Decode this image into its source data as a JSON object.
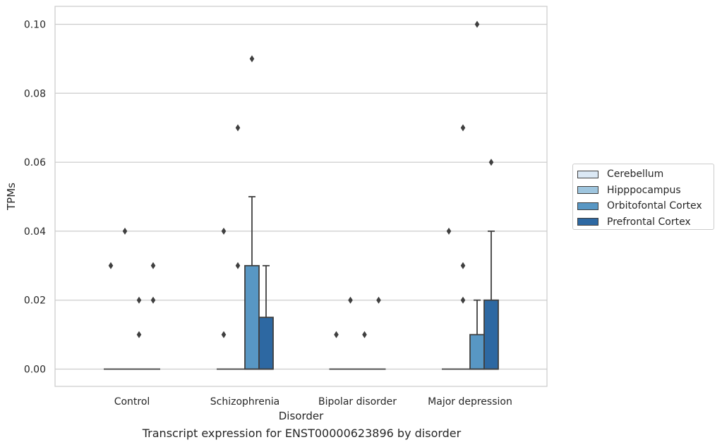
{
  "chart_data": {
    "type": "box",
    "title": "",
    "caption": "Transcript expression for ENST00000623896 by disorder",
    "xlabel": "Disorder",
    "ylabel": "TPMs",
    "ylim": [
      -0.005,
      0.105
    ],
    "yticks": [
      0.0,
      0.02,
      0.04,
      0.06,
      0.08,
      0.1
    ],
    "ytick_labels": [
      "0.00",
      "0.02",
      "0.04",
      "0.06",
      "0.08",
      "0.10"
    ],
    "grid": true,
    "legend_position": "right",
    "categories": [
      "Control",
      "Schizophrenia",
      "Bipolar disorder",
      "Major depression"
    ],
    "series": [
      {
        "name": "Cerebellum",
        "color": "#dbe8f4",
        "boxes": [
          {
            "q1": 0,
            "median": 0,
            "q3": 0,
            "whisker_low": 0,
            "whisker_high": 0,
            "outliers": [
              0.03
            ]
          },
          {
            "q1": 0,
            "median": 0,
            "q3": 0,
            "whisker_low": 0,
            "whisker_high": 0,
            "outliers": [
              0.01,
              0.04
            ]
          },
          {
            "q1": 0,
            "median": 0,
            "q3": 0,
            "whisker_low": 0,
            "whisker_high": 0,
            "outliers": [
              0.01
            ]
          },
          {
            "q1": 0,
            "median": 0,
            "q3": 0,
            "whisker_low": 0,
            "whisker_high": 0,
            "outliers": [
              0.04
            ]
          }
        ]
      },
      {
        "name": "Hipppocampus",
        "color": "#9ec5de",
        "boxes": [
          {
            "q1": 0,
            "median": 0,
            "q3": 0,
            "whisker_low": 0,
            "whisker_high": 0,
            "outliers": [
              0.04
            ]
          },
          {
            "q1": 0,
            "median": 0,
            "q3": 0,
            "whisker_low": 0,
            "whisker_high": 0,
            "outliers": [
              0.03,
              0.07
            ]
          },
          {
            "q1": 0,
            "median": 0,
            "q3": 0,
            "whisker_low": 0,
            "whisker_high": 0,
            "outliers": [
              0.02
            ]
          },
          {
            "q1": 0,
            "median": 0,
            "q3": 0,
            "whisker_low": 0,
            "whisker_high": 0,
            "outliers": [
              0.02,
              0.03,
              0.07
            ]
          }
        ]
      },
      {
        "name": "Orbitofontal Cortex",
        "color": "#5897c4",
        "boxes": [
          {
            "q1": 0,
            "median": 0,
            "q3": 0,
            "whisker_low": 0,
            "whisker_high": 0,
            "outliers": [
              0.01,
              0.02
            ]
          },
          {
            "q1": 0,
            "median": 0,
            "q3": 0.03,
            "whisker_low": 0,
            "whisker_high": 0.05,
            "outliers": [
              0.09
            ]
          },
          {
            "q1": 0,
            "median": 0,
            "q3": 0,
            "whisker_low": 0,
            "whisker_high": 0,
            "outliers": [
              0.01
            ]
          },
          {
            "q1": 0,
            "median": 0,
            "q3": 0.01,
            "whisker_low": 0,
            "whisker_high": 0.02,
            "outliers": [
              0.1
            ]
          }
        ]
      },
      {
        "name": "Prefrontal Cortex",
        "color": "#2d68a2",
        "boxes": [
          {
            "q1": 0,
            "median": 0,
            "q3": 0,
            "whisker_low": 0,
            "whisker_high": 0,
            "outliers": [
              0.02,
              0.03
            ]
          },
          {
            "q1": 0,
            "median": 0,
            "q3": 0.015,
            "whisker_low": 0,
            "whisker_high": 0.03,
            "outliers": []
          },
          {
            "q1": 0,
            "median": 0,
            "q3": 0,
            "whisker_low": 0,
            "whisker_high": 0,
            "outliers": [
              0.02
            ]
          },
          {
            "q1": 0,
            "median": 0,
            "q3": 0.02,
            "whisker_low": 0,
            "whisker_high": 0.04,
            "outliers": [
              0.06
            ]
          }
        ]
      }
    ]
  }
}
